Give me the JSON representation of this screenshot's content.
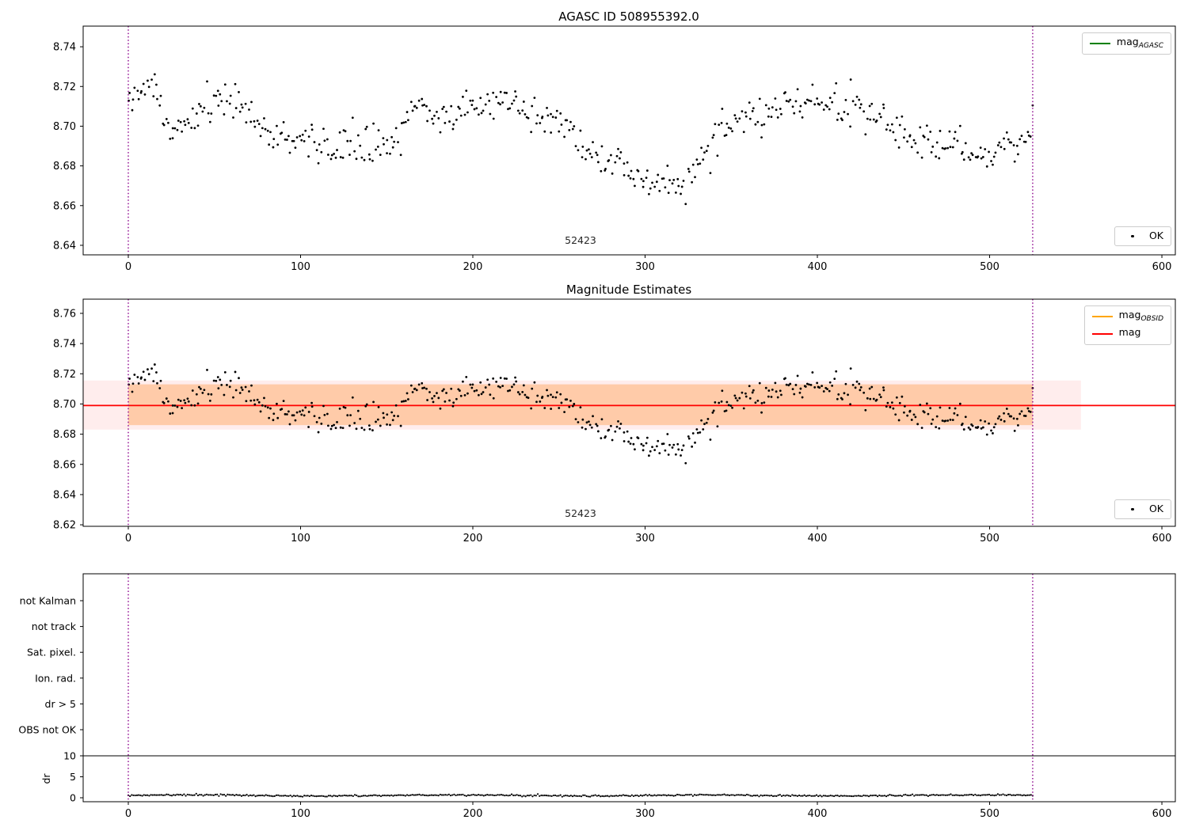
{
  "figure": {
    "background": "#ffffff",
    "obsid_label": "52423"
  },
  "chart_data": [
    {
      "type": "scatter",
      "title": "AGASC ID 508955392.0",
      "xlim": [
        -26.2,
        607.8
      ],
      "ylim": [
        8.6352,
        8.7504
      ],
      "xticks": [
        0,
        100,
        200,
        300,
        400,
        500,
        600
      ],
      "yticks": [
        8.64,
        8.66,
        8.68,
        8.7,
        8.72,
        8.74
      ],
      "vlines": [
        0,
        525
      ],
      "vline_color": "#8B008B",
      "marker_color": "#000000",
      "annotation": {
        "text": "52423",
        "x": 262
      },
      "legend_top": [
        {
          "label": "mag",
          "sub": "AGASC",
          "color": "#008000"
        }
      ],
      "legend_bottom": [
        {
          "label": "OK",
          "color": "#000000"
        }
      ],
      "scatter_model": {
        "comment": "approximation of ~520 observed mag points vs time (days), read from plot",
        "seed": 20,
        "n": 520,
        "x_min": 0,
        "x_max": 525,
        "noise_sigma": 0.0045,
        "control_points": [
          [
            0,
            8.712
          ],
          [
            8,
            8.715
          ],
          [
            14,
            8.722
          ],
          [
            22,
            8.7
          ],
          [
            30,
            8.7
          ],
          [
            38,
            8.705
          ],
          [
            46,
            8.712
          ],
          [
            55,
            8.714
          ],
          [
            62,
            8.712
          ],
          [
            70,
            8.705
          ],
          [
            78,
            8.7
          ],
          [
            86,
            8.694
          ],
          [
            95,
            8.691
          ],
          [
            105,
            8.694
          ],
          [
            112,
            8.69
          ],
          [
            120,
            8.688
          ],
          [
            128,
            8.691
          ],
          [
            136,
            8.688
          ],
          [
            144,
            8.69
          ],
          [
            152,
            8.691
          ],
          [
            158,
            8.697
          ],
          [
            164,
            8.708
          ],
          [
            170,
            8.712
          ],
          [
            178,
            8.706
          ],
          [
            186,
            8.704
          ],
          [
            194,
            8.71
          ],
          [
            202,
            8.713
          ],
          [
            210,
            8.709
          ],
          [
            218,
            8.712
          ],
          [
            226,
            8.71
          ],
          [
            234,
            8.705
          ],
          [
            242,
            8.708
          ],
          [
            250,
            8.702
          ],
          [
            258,
            8.698
          ],
          [
            264,
            8.69
          ],
          [
            270,
            8.684
          ],
          [
            278,
            8.681
          ],
          [
            286,
            8.679
          ],
          [
            294,
            8.674
          ],
          [
            302,
            8.672
          ],
          [
            310,
            8.674
          ],
          [
            318,
            8.668
          ],
          [
            324,
            8.672
          ],
          [
            330,
            8.679
          ],
          [
            336,
            8.688
          ],
          [
            342,
            8.694
          ],
          [
            348,
            8.7
          ],
          [
            354,
            8.703
          ],
          [
            360,
            8.705
          ],
          [
            366,
            8.702
          ],
          [
            372,
            8.705
          ],
          [
            378,
            8.712
          ],
          [
            384,
            8.716
          ],
          [
            390,
            8.714
          ],
          [
            396,
            8.71
          ],
          [
            402,
            8.712
          ],
          [
            408,
            8.714
          ],
          [
            414,
            8.71
          ],
          [
            420,
            8.712
          ],
          [
            426,
            8.708
          ],
          [
            432,
            8.702
          ],
          [
            438,
            8.705
          ],
          [
            444,
            8.7
          ],
          [
            450,
            8.696
          ],
          [
            456,
            8.692
          ],
          [
            462,
            8.694
          ],
          [
            468,
            8.69
          ],
          [
            474,
            8.688
          ],
          [
            480,
            8.693
          ],
          [
            486,
            8.686
          ],
          [
            492,
            8.684
          ],
          [
            498,
            8.681
          ],
          [
            504,
            8.686
          ],
          [
            510,
            8.691
          ],
          [
            516,
            8.688
          ],
          [
            521,
            8.695
          ],
          [
            525,
            8.701
          ]
        ]
      }
    },
    {
      "type": "scatter",
      "title": "Magnitude Estimates",
      "xlim": [
        -26.2,
        607.8
      ],
      "ylim": [
        8.619,
        8.7694
      ],
      "xticks": [
        0,
        100,
        200,
        300,
        400,
        500,
        600
      ],
      "yticks": [
        8.62,
        8.64,
        8.66,
        8.68,
        8.7,
        8.72,
        8.74,
        8.76
      ],
      "vlines": [
        0,
        525
      ],
      "vline_color": "#8B008B",
      "marker_color": "#000000",
      "mag_line": 8.699,
      "mag_line_color": "#ff0000",
      "mag_band": [
        8.683,
        8.7155
      ],
      "mag_band_x": [
        -26.2,
        553
      ],
      "mag_band_color": "rgba(255,0,0,0.07)",
      "obsid_band": [
        8.686,
        8.713
      ],
      "obsid_band_x": [
        0,
        525
      ],
      "obsid_band_color": "rgba(255,127,14,0.30)",
      "annotation": {
        "text": "52423",
        "x": 262
      },
      "legend_top": [
        {
          "label": "mag",
          "sub": "OBSID",
          "color": "#ffa500"
        },
        {
          "label": "mag",
          "sub": "",
          "color": "#ff0000"
        }
      ],
      "legend_bottom": [
        {
          "label": "OK",
          "color": "#000000"
        }
      ]
    },
    {
      "type": "scatter",
      "title": "",
      "xlim": [
        -26.2,
        607.8
      ],
      "xticks": [
        0,
        100,
        200,
        300,
        400,
        500,
        600
      ],
      "vlines": [
        0,
        525
      ],
      "vline_color": "#8B008B",
      "flag_categories": [
        "not Kalman",
        "not track",
        "Sat. pixel.",
        "Ion. rad.",
        "dr > 5",
        "OBS not OK"
      ],
      "flag_events": [],
      "dr_axis": {
        "label": "dr",
        "ticks": [
          0,
          5,
          10
        ],
        "hline": 10
      },
      "dr_model": {
        "comment": "approximation of dr telemetry trace, values ~0.2-0.9 over 0..525",
        "seed": 11,
        "n": 520,
        "x_min": 0,
        "x_max": 525,
        "base": 0.55,
        "wave_amp": 0.25,
        "wave_period": 150,
        "noise_sigma": 0.09,
        "min": 0.1
      }
    }
  ]
}
